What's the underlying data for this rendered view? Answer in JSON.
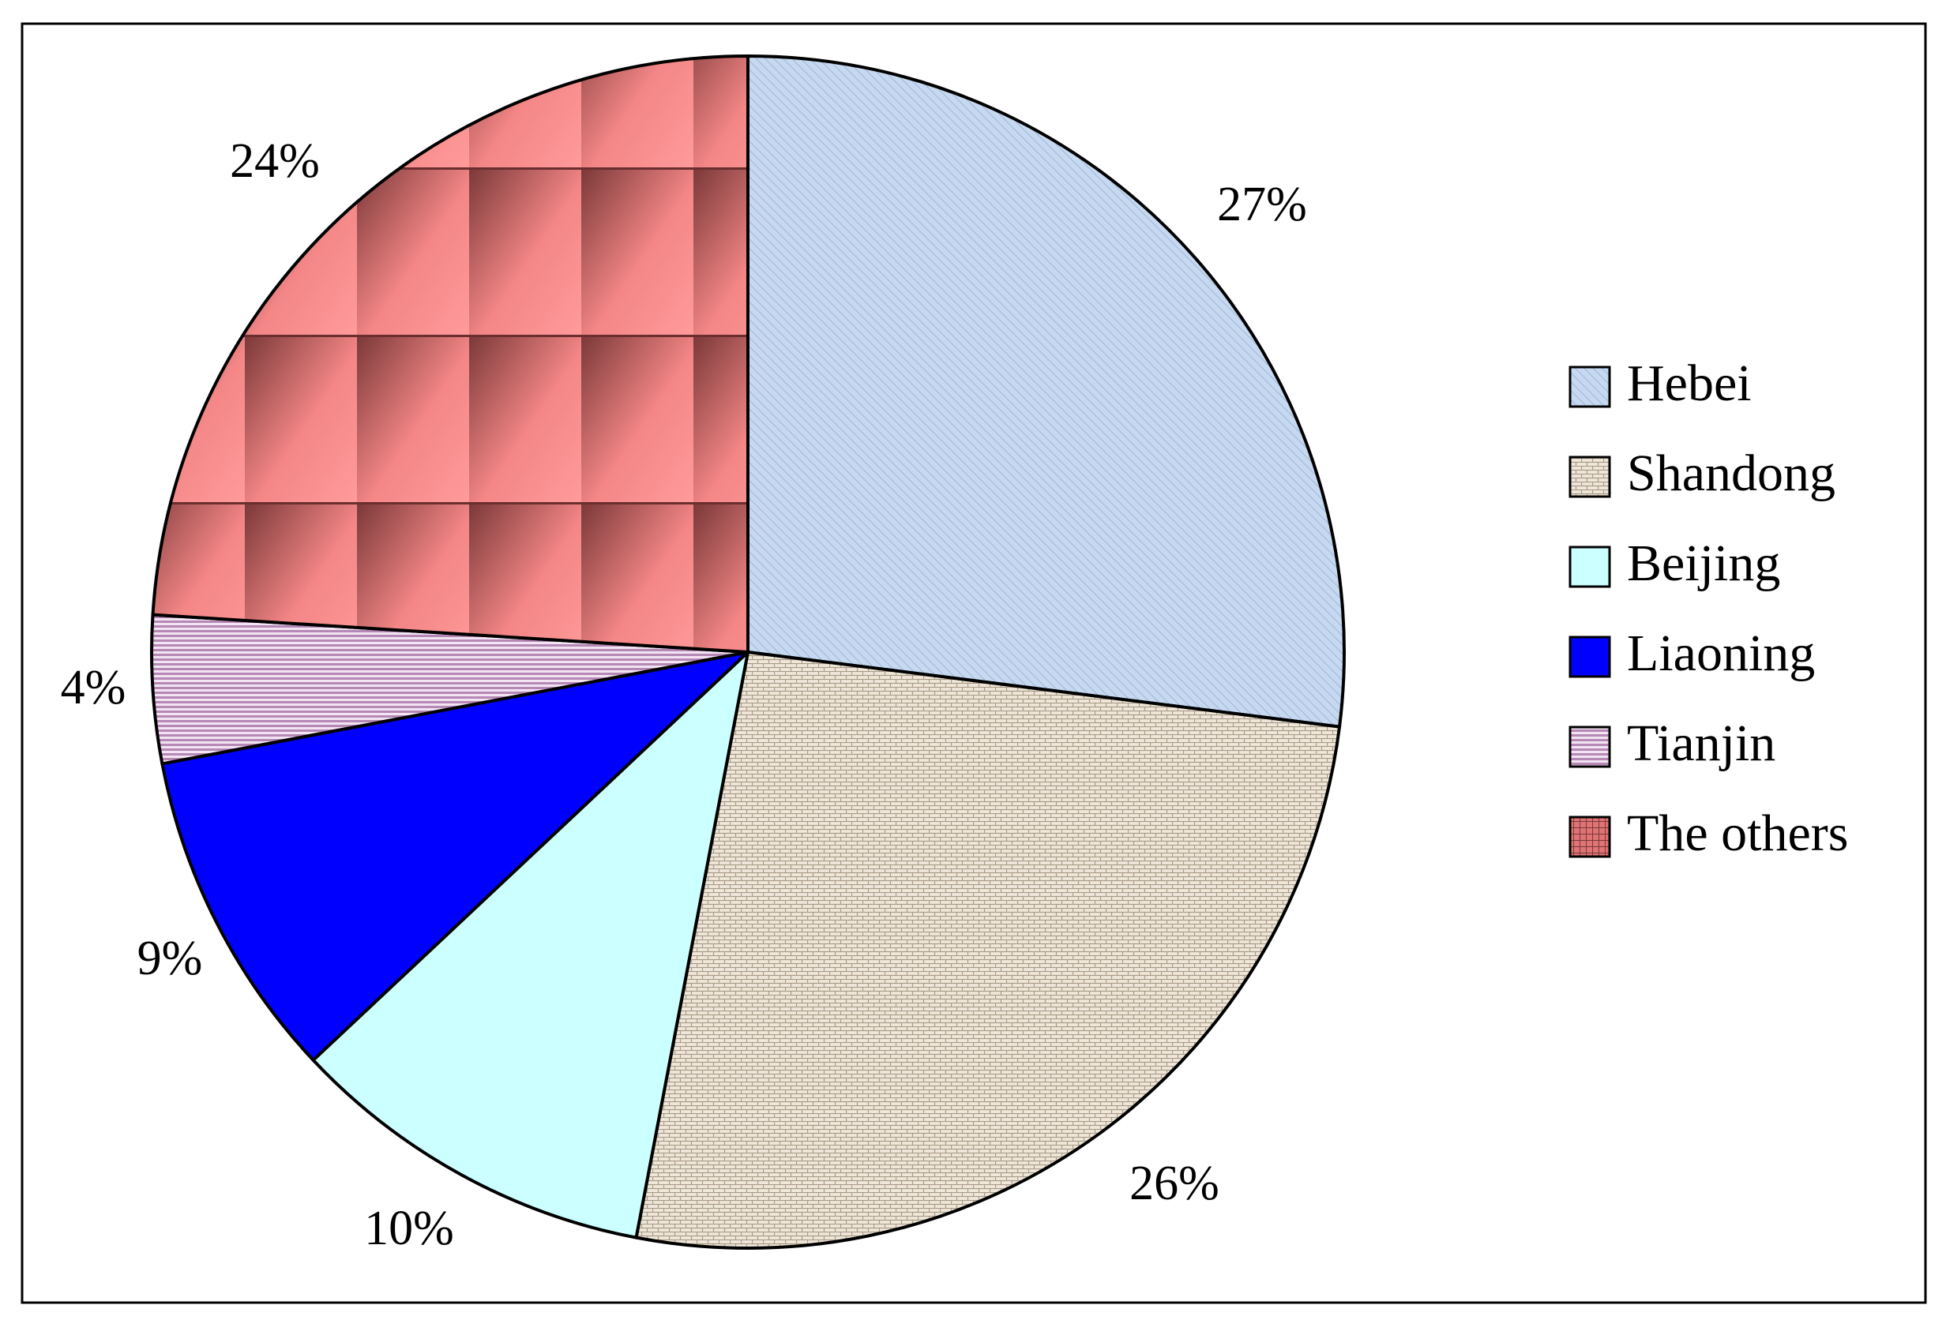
{
  "chart_data": {
    "type": "pie",
    "title": "",
    "legend_position": "right",
    "slices": [
      {
        "name": "Hebei",
        "value": 27,
        "label": "27%",
        "color": "#c6d9f1",
        "pattern": "diagonal-stripes"
      },
      {
        "name": "Shandong",
        "value": 26,
        "label": "26%",
        "color": "#ede4d8",
        "pattern": "brick"
      },
      {
        "name": "Beijing",
        "value": 10,
        "label": "10%",
        "color": "#ccffff",
        "pattern": "solid"
      },
      {
        "name": "Liaoning",
        "value": 9,
        "label": "9%",
        "color": "#0000ff",
        "pattern": "solid"
      },
      {
        "name": "Tianjin",
        "value": 4,
        "label": "4%",
        "color": "#cc99cc",
        "pattern": "horizontal-stripes"
      },
      {
        "name": "The others",
        "value": 24,
        "label": "24%",
        "color": "#f08080",
        "pattern": "gradient-tiles"
      }
    ]
  }
}
